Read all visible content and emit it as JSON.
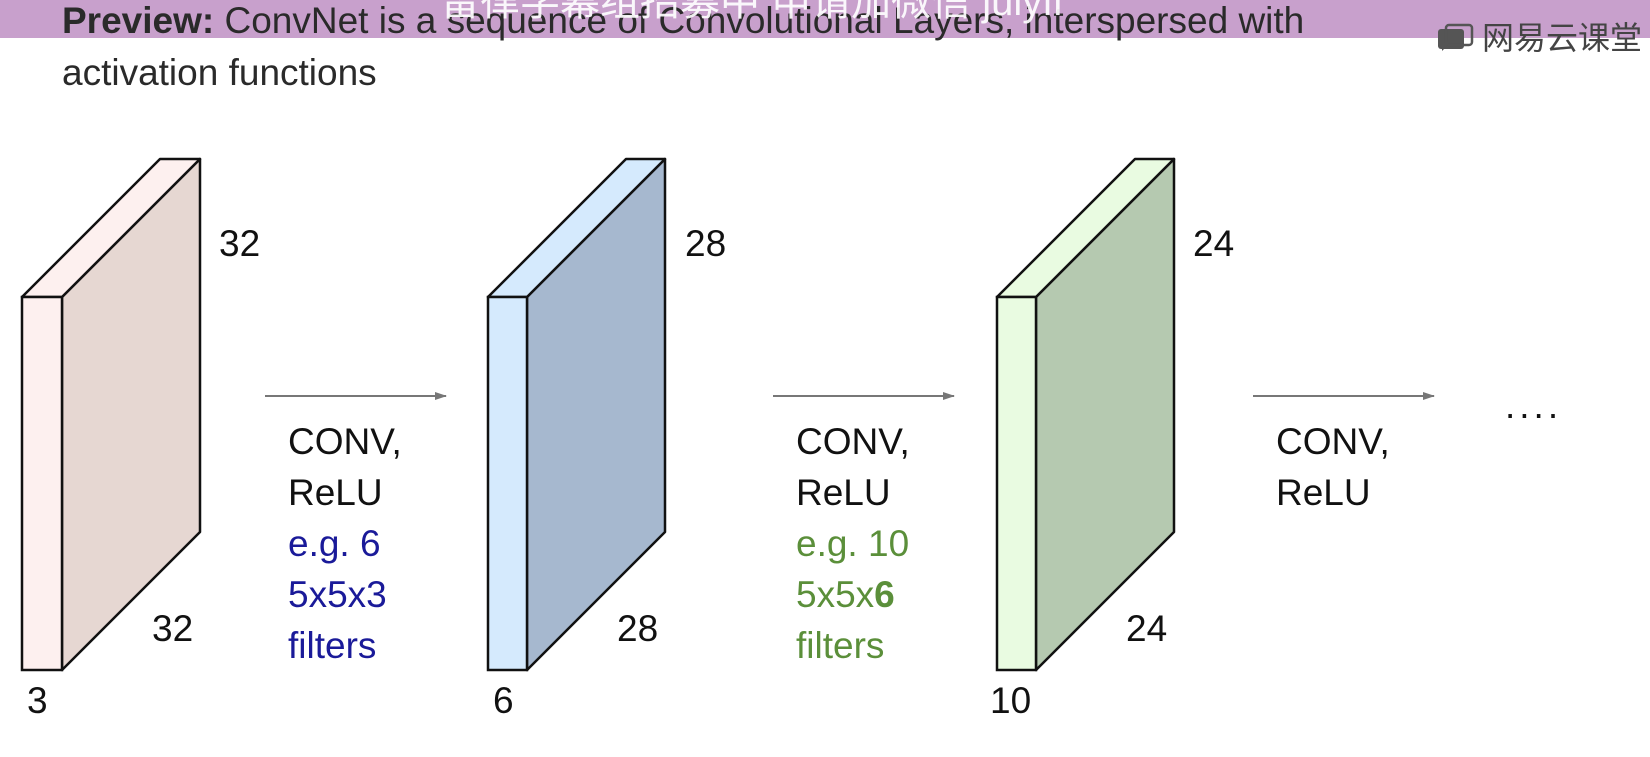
{
  "title": {
    "prefix": "Preview:",
    "line1": "ConvNet is a sequence of Convolutional Layers, interspersed with",
    "line2": "activation functions"
  },
  "subtitle_overlay": "留律学幕组招募中 申请加微信 julyfl",
  "logo": {
    "icon": "netease-cloud-classroom-icon",
    "text": "网易云课堂"
  },
  "colors": {
    "title_bar": "#c8a0cc",
    "volume1_front": "#fdf0ef",
    "volume1_side": "#e6d7d2",
    "volume2_front": "#d5eafd",
    "volume2_side": "#a6b8cf",
    "volume3_front": "#e9fbe1",
    "volume3_side": "#b5c9b0",
    "filters1_text": "#1a1a99",
    "filters2_text": "#5b8f3a"
  },
  "volumes": [
    {
      "height": "32",
      "width": "32",
      "depth": "3"
    },
    {
      "height": "28",
      "width": "28",
      "depth": "6"
    },
    {
      "height": "24",
      "width": "24",
      "depth": "10"
    }
  ],
  "operations": [
    {
      "lines": [
        "CONV,",
        "ReLU"
      ],
      "filters": {
        "line1": "e.g. 6",
        "line2_prefix": "5x5x3",
        "line2_bold": "",
        "line3": "filters"
      }
    },
    {
      "lines": [
        "CONV,",
        "ReLU"
      ],
      "filters": {
        "line1": "e.g. 10",
        "line2_prefix": "5x5x",
        "line2_bold": "6",
        "line3": "filters"
      }
    },
    {
      "lines": [
        "CONV,",
        "ReLU"
      ]
    }
  ],
  "ellipsis": "...."
}
